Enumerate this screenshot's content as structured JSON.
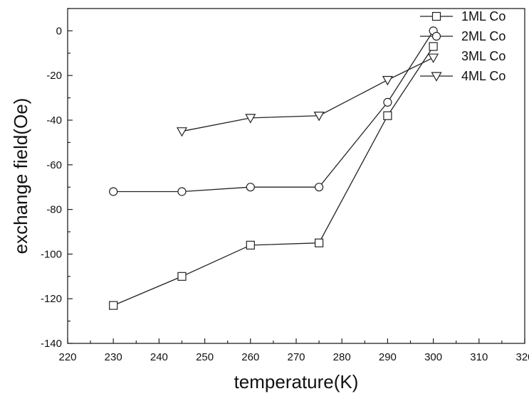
{
  "chart_data": {
    "type": "line",
    "title": "",
    "xlabel": "temperature(K)",
    "ylabel": "exchange field(Oe)",
    "xlim": [
      220,
      320
    ],
    "ylim": [
      -140,
      10
    ],
    "xticks": [
      220,
      230,
      240,
      250,
      260,
      270,
      280,
      290,
      300,
      310,
      320
    ],
    "yticks": [
      0,
      -20,
      -40,
      -60,
      -80,
      -100,
      -120,
      -140
    ],
    "grid": false,
    "legend_position": "top-right",
    "series": [
      {
        "name": "1ML Co",
        "marker": "square",
        "x": [
          230,
          245,
          260,
          275,
          290,
          300
        ],
        "y": [
          -123,
          -110,
          -96,
          -95,
          -38,
          -7
        ]
      },
      {
        "name": "2ML Co",
        "marker": "circle",
        "x": [
          230,
          245,
          260,
          275,
          290,
          300
        ],
        "y": [
          -72,
          -72,
          -70,
          -70,
          -32,
          0
        ]
      },
      {
        "name": "3ML Co",
        "marker": "none",
        "x": [],
        "y": []
      },
      {
        "name": "4ML Co",
        "marker": "triangle-down",
        "x": [
          245,
          260,
          275,
          290,
          300
        ],
        "y": [
          -45,
          -39,
          -38,
          -22,
          -12
        ]
      }
    ]
  }
}
